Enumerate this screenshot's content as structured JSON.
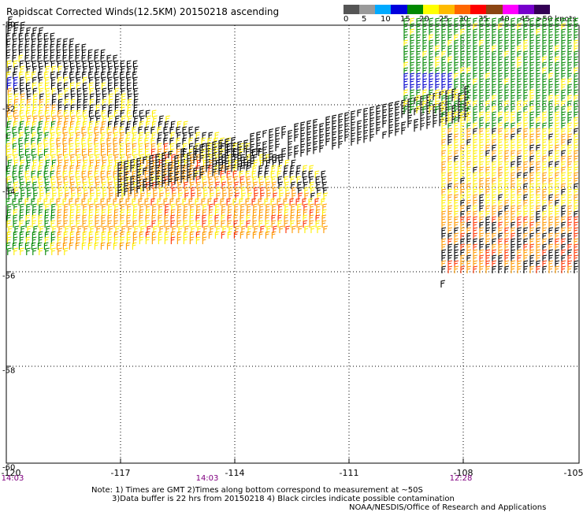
{
  "title": "Rapidscat Corrected Winds(12.5KM) 20150218 ascending",
  "colorbar": {
    "labels": [
      "0",
      "5",
      "10",
      "15",
      "20",
      "25",
      "30",
      "35",
      "40",
      "45",
      ">50 knots"
    ],
    "colors": [
      "#555555",
      "#9a9a9a",
      "#00aaff",
      "#0000dd",
      "#008800",
      "#ffff00",
      "#ffbb00",
      "#ff6600",
      "#ff0000",
      "#8b4513",
      "#ff00ff",
      "#7700cc",
      "#330055"
    ]
  },
  "axes": {
    "x_ticks": [
      "-120",
      "-117",
      "-114",
      "-111",
      "-108",
      "-105"
    ],
    "y_ticks": [
      "-50",
      "-52",
      "-54",
      "-56",
      "-58",
      "-60"
    ],
    "lon_range": [
      -120,
      -105
    ],
    "lat_range": [
      -60,
      -50
    ]
  },
  "times": [
    "14:03",
    "14:03",
    "12:28"
  ],
  "notes": {
    "line1": "Note: 1) Times are GMT 2)Times along bottom correspond to measurement at ~50S",
    "line2": "3)Data buffer is 22 hrs from 20150218 4) Black circles indicate possible contamination",
    "credit": "NOAA/NESDIS/Office of Research and Applications"
  },
  "wind_colors": {
    "black": "#000000",
    "green": "#008800",
    "yellow": "#ffee00",
    "orange": "#ff9900",
    "red": "#ff3300",
    "blue": "#0000cc"
  }
}
